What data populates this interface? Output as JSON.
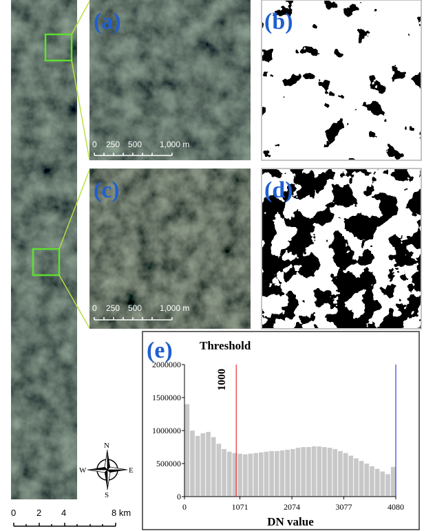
{
  "panel_labels": [
    "(a)",
    "(b)",
    "(c)",
    "(d)",
    "(e)"
  ],
  "panel_a_scale": [
    "0",
    "250",
    "500",
    "1,000 m"
  ],
  "panel_c_scale": [
    "0",
    "250",
    "500",
    "1,000 m"
  ],
  "strip_scale": [
    "0",
    "2",
    "4",
    "8 km"
  ],
  "compass": [
    "N",
    "S",
    "E",
    "W"
  ],
  "chart_data": {
    "type": "histogram",
    "annotation": "Threshold",
    "xlabel": "DN value",
    "bins": [
      0,
      102,
      204,
      306,
      408,
      510,
      612,
      714,
      816,
      918,
      1020,
      1122,
      1224,
      1326,
      1428,
      1530,
      1632,
      1734,
      1836,
      1938,
      2040,
      2142,
      2244,
      2346,
      2448,
      2550,
      2652,
      2754,
      2856,
      2958,
      3060,
      3162,
      3264,
      3366,
      3468,
      3570,
      3672,
      3774,
      3876,
      3978,
      4080
    ],
    "counts": [
      1400000,
      1000000,
      920000,
      960000,
      980000,
      900000,
      800000,
      720000,
      680000,
      660000,
      650000,
      640000,
      650000,
      660000,
      670000,
      680000,
      690000,
      690000,
      700000,
      710000,
      720000,
      740000,
      750000,
      750000,
      760000,
      760000,
      750000,
      740000,
      720000,
      690000,
      660000,
      620000,
      580000,
      540000,
      500000,
      460000,
      420000,
      380000,
      340000,
      450000
    ],
    "color": "#c8c8c8",
    "xlim": [
      0,
      4080
    ],
    "xticks": [
      0,
      1071,
      2074,
      3077,
      4080
    ],
    "ylim": [
      0,
      2000000
    ],
    "yticks": [
      0,
      500000,
      1000000,
      1500000,
      2000000
    ],
    "threshold_lines": [
      {
        "value": 1000,
        "color": "#e03030",
        "label": "1000"
      },
      {
        "value": 4080,
        "color": "#3040e0"
      }
    ]
  }
}
